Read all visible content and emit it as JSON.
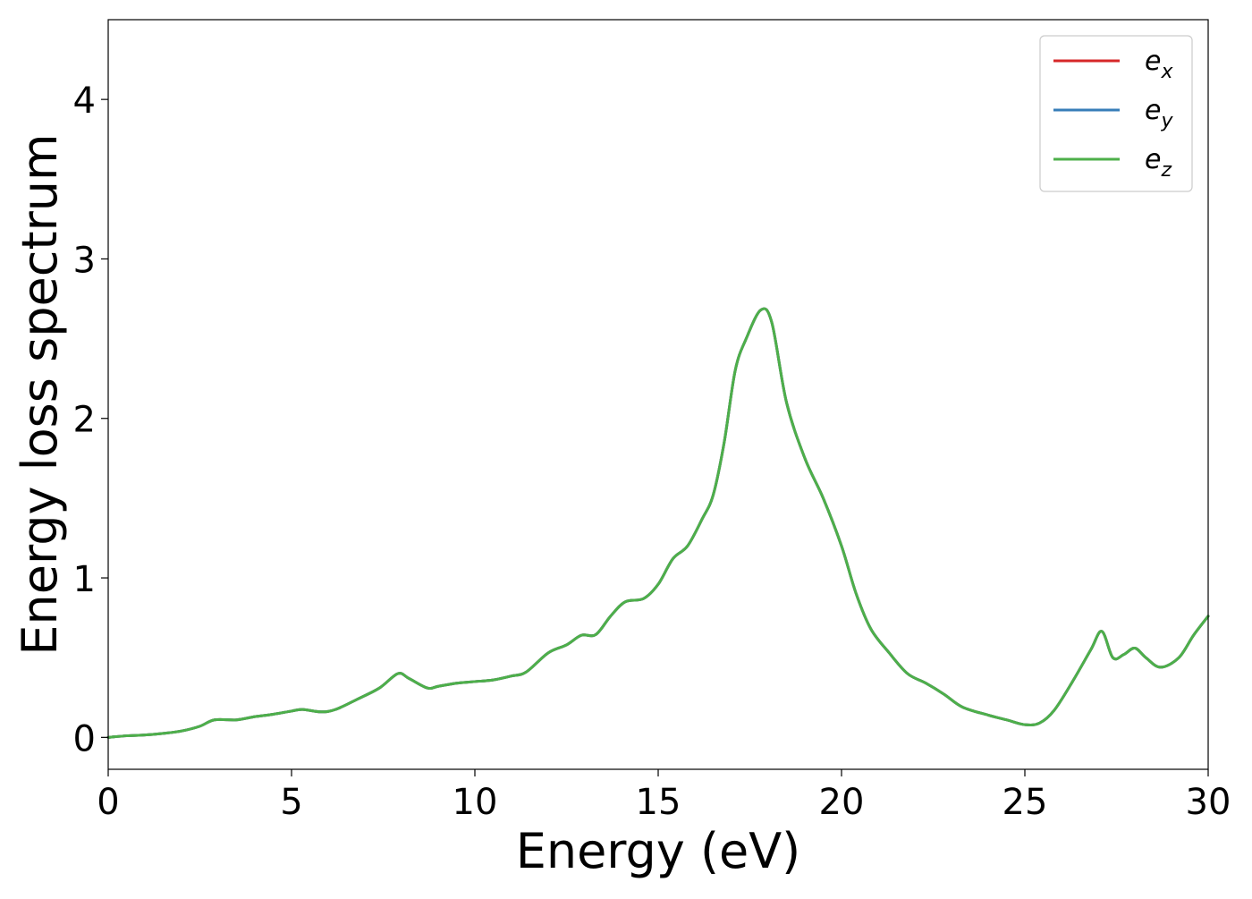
{
  "chart_data": {
    "type": "line",
    "title": "",
    "xlabel": "Energy (eV)",
    "ylabel": "Energy loss spectrum",
    "xlim": [
      0,
      30
    ],
    "ylim": [
      -0.2,
      4.5
    ],
    "xticks": [
      0,
      5,
      10,
      15,
      20,
      25,
      30
    ],
    "yticks": [
      0,
      1,
      2,
      3,
      4
    ],
    "xtick_labels": [
      "0",
      "5",
      "10",
      "15",
      "20",
      "25",
      "30"
    ],
    "ytick_labels": [
      "0",
      "1",
      "2",
      "3",
      "4"
    ],
    "grid": false,
    "legend_position": "top-right",
    "x": [
      0,
      0.5,
      1,
      1.5,
      2,
      2.5,
      2.9,
      3.5,
      4,
      4.5,
      5,
      5.3,
      5.8,
      6.2,
      6.8,
      7.4,
      7.9,
      8.2,
      8.7,
      9,
      9.5,
      10,
      10.5,
      11,
      11.4,
      12,
      12.5,
      12.9,
      13.3,
      13.7,
      14.1,
      14.6,
      15,
      15.4,
      15.8,
      16.2,
      16.5,
      16.8,
      17.1,
      17.4,
      17.8,
      18.1,
      18.5,
      19,
      19.5,
      20,
      20.4,
      20.8,
      21.3,
      21.8,
      22.3,
      22.8,
      23.3,
      24,
      24.5,
      25,
      25.4,
      25.8,
      26.3,
      26.8,
      27.1,
      27.4,
      27.7,
      28,
      28.3,
      28.7,
      29.2,
      29.6,
      30
    ],
    "series": [
      {
        "name": "e_x",
        "color": "#d62728",
        "values": [
          0,
          0.01,
          0.015,
          0.025,
          0.04,
          0.07,
          0.11,
          0.11,
          0.13,
          0.145,
          0.165,
          0.175,
          0.16,
          0.175,
          0.24,
          0.31,
          0.4,
          0.37,
          0.31,
          0.32,
          0.34,
          0.35,
          0.36,
          0.385,
          0.41,
          0.53,
          0.58,
          0.64,
          0.645,
          0.76,
          0.85,
          0.87,
          0.96,
          1.12,
          1.2,
          1.37,
          1.52,
          1.85,
          2.3,
          2.5,
          2.68,
          2.6,
          2.1,
          1.75,
          1.5,
          1.2,
          0.9,
          0.68,
          0.53,
          0.4,
          0.34,
          0.27,
          0.19,
          0.14,
          0.11,
          0.08,
          0.09,
          0.17,
          0.35,
          0.55,
          0.665,
          0.5,
          0.52,
          0.56,
          0.5,
          0.44,
          0.5,
          0.64,
          0.76
        ]
      },
      {
        "name": "e_y",
        "color": "#377eb8",
        "values": [
          0,
          0.01,
          0.015,
          0.025,
          0.04,
          0.07,
          0.11,
          0.11,
          0.13,
          0.145,
          0.165,
          0.175,
          0.16,
          0.175,
          0.24,
          0.31,
          0.4,
          0.37,
          0.31,
          0.32,
          0.34,
          0.35,
          0.36,
          0.385,
          0.41,
          0.53,
          0.58,
          0.64,
          0.645,
          0.76,
          0.85,
          0.87,
          0.96,
          1.12,
          1.2,
          1.37,
          1.52,
          1.85,
          2.3,
          2.5,
          2.68,
          2.6,
          2.1,
          1.75,
          1.5,
          1.2,
          0.9,
          0.68,
          0.53,
          0.4,
          0.34,
          0.27,
          0.19,
          0.14,
          0.11,
          0.08,
          0.09,
          0.17,
          0.35,
          0.55,
          0.665,
          0.5,
          0.52,
          0.56,
          0.5,
          0.44,
          0.5,
          0.64,
          0.76
        ]
      },
      {
        "name": "e_z",
        "color": "#4daf4a",
        "values": [
          0,
          0.01,
          0.015,
          0.025,
          0.04,
          0.07,
          0.11,
          0.11,
          0.13,
          0.145,
          0.165,
          0.175,
          0.16,
          0.175,
          0.24,
          0.31,
          0.4,
          0.37,
          0.31,
          0.32,
          0.34,
          0.35,
          0.36,
          0.385,
          0.41,
          0.53,
          0.58,
          0.64,
          0.645,
          0.76,
          0.85,
          0.87,
          0.96,
          1.12,
          1.2,
          1.37,
          1.52,
          1.85,
          2.3,
          2.5,
          2.68,
          2.6,
          2.1,
          1.75,
          1.5,
          1.2,
          0.9,
          0.68,
          0.53,
          0.4,
          0.34,
          0.27,
          0.19,
          0.14,
          0.11,
          0.08,
          0.09,
          0.17,
          0.35,
          0.55,
          0.665,
          0.5,
          0.52,
          0.56,
          0.5,
          0.44,
          0.5,
          0.64,
          0.76
        ]
      }
    ],
    "legend": [
      {
        "base": "e",
        "sub": "x",
        "color": "#d62728"
      },
      {
        "base": "e",
        "sub": "y",
        "color": "#377eb8"
      },
      {
        "base": "e",
        "sub": "z",
        "color": "#4daf4a"
      }
    ]
  }
}
